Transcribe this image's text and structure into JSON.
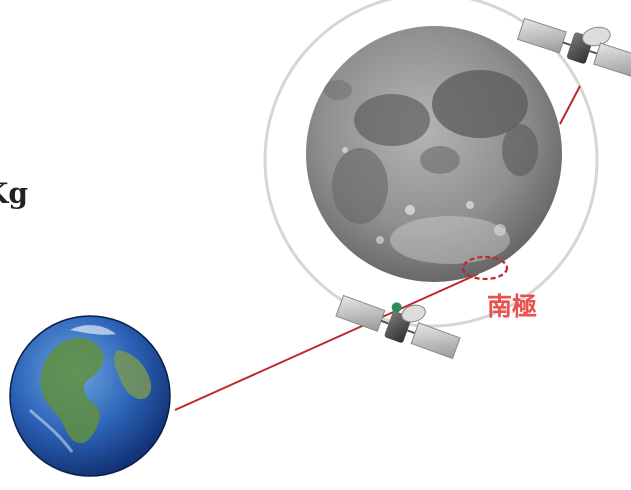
{
  "left_text": {
    "line1": ")",
    "line2": "Kg"
  },
  "moon": {
    "south_pole_label": "南極"
  },
  "colors": {
    "orbit": "#d6d6d6",
    "link_line": "#c0272d",
    "pole_marker": "#c0272d",
    "pole_label": "#e8524f"
  },
  "icons": {
    "earth": "earth-icon",
    "moon": "moon-icon",
    "relay_satellite": "satellite-icon",
    "lander_satellite": "satellite-icon"
  }
}
